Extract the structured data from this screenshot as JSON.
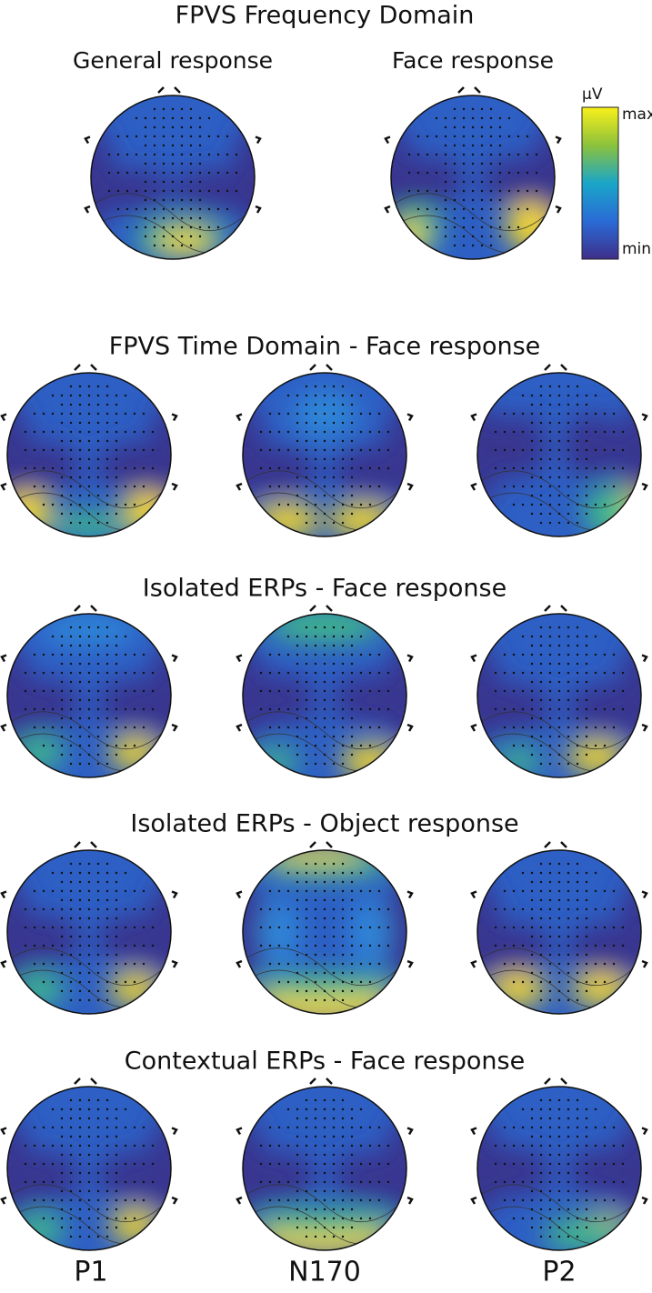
{
  "header": {
    "title": "FPVS Frequency Domain",
    "subtitles": [
      "General response",
      "Face response"
    ]
  },
  "colorbar": {
    "unit": "μV",
    "max": "max",
    "min": "min"
  },
  "sections": [
    "FPVS Time Domain - Face response",
    "Isolated ERPs - Face response",
    "Isolated ERPs - Object response",
    "Contextual ERPs - Face response"
  ],
  "columns": [
    "P1",
    "N170",
    "P2"
  ]
}
